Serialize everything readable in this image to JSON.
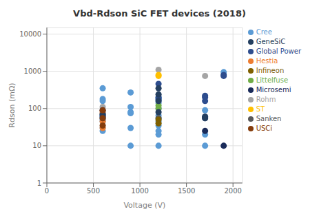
{
  "chart_data": {
    "type": "scatter",
    "title": "Vbd-Rdson SiC FET devices (2018)",
    "xlabel": "Voltage (V)",
    "ylabel": "Rdson (mΩ)",
    "xlim": [
      0,
      2100
    ],
    "ylim": [
      1,
      15000
    ],
    "xticks": [
      0,
      500,
      1000,
      1500,
      2000
    ],
    "yticks": [
      1,
      10,
      100,
      1000,
      10000
    ],
    "log": "y",
    "grid": true,
    "legend": "right",
    "series": [
      {
        "name": "Cree",
        "color": "#5B9BD5",
        "values": [
          [
            600,
            350
          ],
          [
            600,
            180
          ],
          [
            600,
            160
          ],
          [
            600,
            75
          ],
          [
            600,
            65
          ],
          [
            600,
            50
          ],
          [
            600,
            45
          ],
          [
            600,
            30
          ],
          [
            600,
            25
          ],
          [
            900,
            270
          ],
          [
            900,
            110
          ],
          [
            900,
            80
          ],
          [
            900,
            75
          ],
          [
            900,
            30
          ],
          [
            900,
            10
          ],
          [
            1200,
            200
          ],
          [
            1200,
            180
          ],
          [
            1200,
            160
          ],
          [
            1200,
            140
          ],
          [
            1200,
            100
          ],
          [
            1200,
            65
          ],
          [
            1200,
            55
          ],
          [
            1200,
            45
          ],
          [
            1200,
            35
          ],
          [
            1200,
            25
          ],
          [
            1200,
            20
          ],
          [
            1200,
            10
          ],
          [
            1700,
            90
          ],
          [
            1700,
            20
          ],
          [
            1700,
            10
          ],
          [
            1900,
            950
          ]
        ]
      },
      {
        "name": "Hestia",
        "color": "#ED7D31",
        "values": [
          [
            600,
            85
          ],
          [
            600,
            75
          ],
          [
            600,
            45
          ],
          [
            600,
            30
          ]
        ]
      },
      {
        "name": "Rohm",
        "color": "#A5A5A5",
        "values": [
          [
            600,
            110
          ],
          [
            1200,
            1100
          ],
          [
            1700,
            750
          ]
        ]
      },
      {
        "name": "ST",
        "color": "#FFC000",
        "values": [
          [
            1200,
            800
          ],
          [
            1200,
            750
          ]
        ]
      },
      {
        "name": "Global Power",
        "color": "#2E4D8E",
        "values": [
          [
            600,
            90
          ],
          [
            600,
            65
          ],
          [
            1200,
            460
          ],
          [
            1200,
            200
          ],
          [
            1200,
            180
          ],
          [
            1700,
            220
          ],
          [
            1700,
            200
          ],
          [
            1700,
            160
          ],
          [
            1700,
            60
          ],
          [
            1700,
            55
          ],
          [
            1900,
            800
          ],
          [
            1900,
            750
          ]
        ]
      },
      {
        "name": "Littelfuse",
        "color": "#70AD47",
        "values": [
          [
            1200,
            120
          ],
          [
            1200,
            100
          ]
        ]
      },
      {
        "name": "GeneSiC",
        "color": "#243F60",
        "values": [
          [
            600,
            70
          ],
          [
            600,
            60
          ],
          [
            600,
            55
          ],
          [
            1200,
            350
          ],
          [
            1200,
            240
          ],
          [
            1200,
            160
          ],
          [
            1200,
            80
          ],
          [
            1700,
            60
          ],
          [
            1700,
            55
          ]
        ]
      },
      {
        "name": "USCi",
        "color": "#843C0C",
        "values": [
          [
            600,
            90
          ],
          [
            600,
            55
          ],
          [
            600,
            35
          ]
        ]
      },
      {
        "name": "Sanken",
        "color": "#595959",
        "values": [
          [
            1200,
            55
          ]
        ]
      },
      {
        "name": "Infineon",
        "color": "#7F6000",
        "values": [
          [
            1200,
            50
          ],
          [
            1200,
            40
          ]
        ]
      },
      {
        "name": "Microsemi",
        "color": "#1A2B5A",
        "values": [
          [
            1700,
            25
          ],
          [
            1900,
            10
          ]
        ]
      }
    ]
  }
}
